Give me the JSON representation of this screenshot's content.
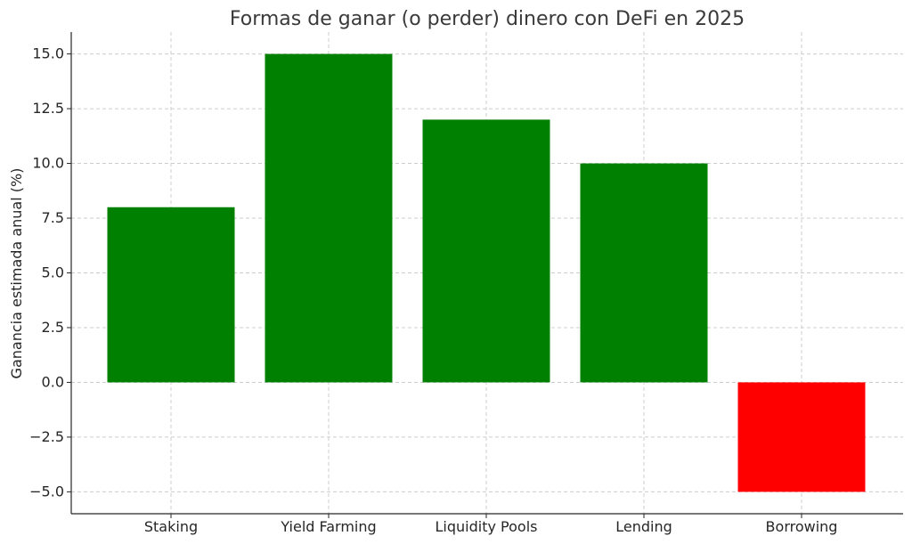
{
  "chart_data": {
    "type": "bar",
    "title": "Formas de ganar (o perder) dinero con DeFi en 2025",
    "xlabel": "",
    "ylabel": "Ganancia estimada anual (%)",
    "categories": [
      "Staking",
      "Yield Farming",
      "Liquidity Pools",
      "Lending",
      "Borrowing"
    ],
    "values": [
      8,
      15,
      12,
      10,
      -5
    ],
    "colors": [
      "#008000",
      "#008000",
      "#008000",
      "#008000",
      "#ff0000"
    ],
    "ylim": [
      -6.0,
      16.0
    ],
    "yticks": [
      -5.0,
      -2.5,
      0.0,
      2.5,
      5.0,
      7.5,
      10.0,
      12.5,
      15.0
    ],
    "ytick_labels": [
      "−5.0",
      "−2.5",
      "0.0",
      "2.5",
      "5.0",
      "7.5",
      "10.0",
      "12.5",
      "15.0"
    ],
    "grid": true,
    "legend": "none"
  }
}
